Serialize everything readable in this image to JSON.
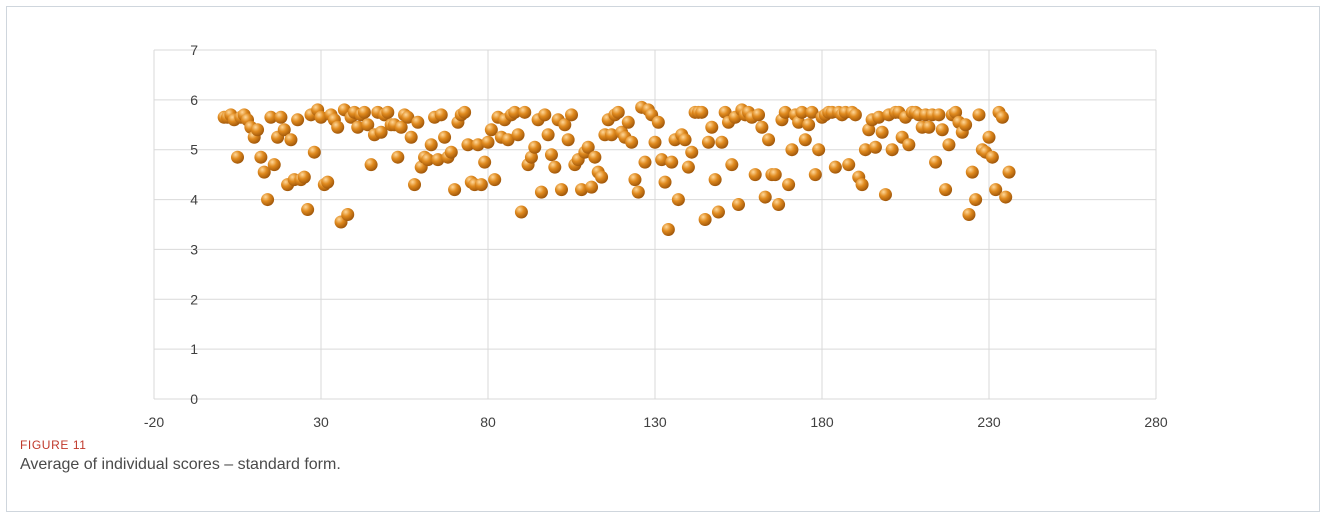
{
  "caption": {
    "label": "FIGURE 11",
    "text": "Average of individual scores – standard form."
  },
  "colors": {
    "marker": "#e08a1e",
    "marker_highlight": "#ffd89a",
    "marker_shadow": "#9a5208",
    "gridline": "#d9d9d9"
  },
  "chart_data": {
    "type": "scatter",
    "title": "",
    "xlabel": "",
    "ylabel": "",
    "xlim": [
      -20,
      280
    ],
    "ylim": [
      0,
      7
    ],
    "xticks": [
      -20,
      30,
      80,
      130,
      180,
      230,
      280
    ],
    "yticks": [
      0,
      1,
      2,
      3,
      4,
      5,
      6,
      7
    ],
    "grid": true,
    "legend": "none",
    "y": [
      5.65,
      5.65,
      5.7,
      5.6,
      4.85,
      5.65,
      5.7,
      5.6,
      5.45,
      5.25,
      5.4,
      4.85,
      4.55,
      4.0,
      5.65,
      4.7,
      5.25,
      5.65,
      5.4,
      4.3,
      5.2,
      4.4,
      5.6,
      4.4,
      4.45,
      3.8,
      5.7,
      4.95,
      5.8,
      5.65,
      4.3,
      4.35,
      5.7,
      5.6,
      5.45,
      3.55,
      5.8,
      3.7,
      5.65,
      5.75,
      5.45,
      5.7,
      5.75,
      5.5,
      4.7,
      5.3,
      5.75,
      5.35,
      5.7,
      5.75,
      5.5,
      5.5,
      4.85,
      5.45,
      5.7,
      5.65,
      5.25,
      4.3,
      5.55,
      4.65,
      4.85,
      4.8,
      5.1,
      5.65,
      4.8,
      5.7,
      5.25,
      4.85,
      4.95,
      4.2,
      5.55,
      5.7,
      5.75,
      5.1,
      4.35,
      4.3,
      5.1,
      4.3,
      4.75,
      5.15,
      5.4,
      4.4,
      5.65,
      5.25,
      5.6,
      5.2,
      5.7,
      5.75,
      5.3,
      3.75,
      5.75,
      4.7,
      4.85,
      5.05,
      5.6,
      4.15,
      5.7,
      5.3,
      4.9,
      4.65,
      5.6,
      4.2,
      5.5,
      5.2,
      5.7,
      4.7,
      4.8,
      4.2,
      4.95,
      5.05,
      4.25,
      4.85,
      4.55,
      4.45,
      5.3,
      5.6,
      5.3,
      5.7,
      5.75,
      5.35,
      5.25,
      5.55,
      5.15,
      4.4,
      4.15,
      5.85,
      4.75,
      5.8,
      5.7,
      5.15,
      5.55,
      4.8,
      4.35,
      3.4,
      4.75,
      5.2,
      4.0,
      5.3,
      5.2,
      4.65,
      4.95,
      5.75,
      5.75,
      5.75,
      3.6,
      5.15,
      5.45,
      4.4,
      3.75,
      5.15,
      5.75,
      5.55,
      4.7,
      5.65,
      3.9,
      5.8,
      5.7,
      5.75,
      5.65,
      4.5,
      5.7,
      5.45,
      4.05,
      5.2,
      4.5,
      4.5,
      3.9,
      5.6,
      5.75,
      4.3,
      5.0,
      5.7,
      5.55,
      5.75,
      5.2,
      5.5,
      5.75,
      4.5,
      5.0,
      5.65,
      5.7,
      5.75,
      5.75,
      4.65,
      5.75,
      5.7,
      5.75,
      4.7,
      5.75,
      5.7,
      4.45,
      4.3,
      5.0,
      5.4,
      5.6,
      5.05,
      5.65,
      5.35,
      4.1,
      5.7,
      5.0,
      5.75,
      5.75,
      5.25,
      5.65,
      5.1,
      5.75,
      5.75,
      5.7,
      5.45,
      5.7,
      5.45,
      5.7,
      4.75,
      5.7,
      5.4,
      4.2,
      5.1,
      5.7,
      5.75,
      5.55,
      5.35,
      5.5,
      3.7,
      4.55,
      4.0,
      5.7,
      5.0,
      4.95,
      5.25,
      4.85,
      4.2,
      5.75,
      5.65,
      4.05,
      4.55
    ]
  }
}
